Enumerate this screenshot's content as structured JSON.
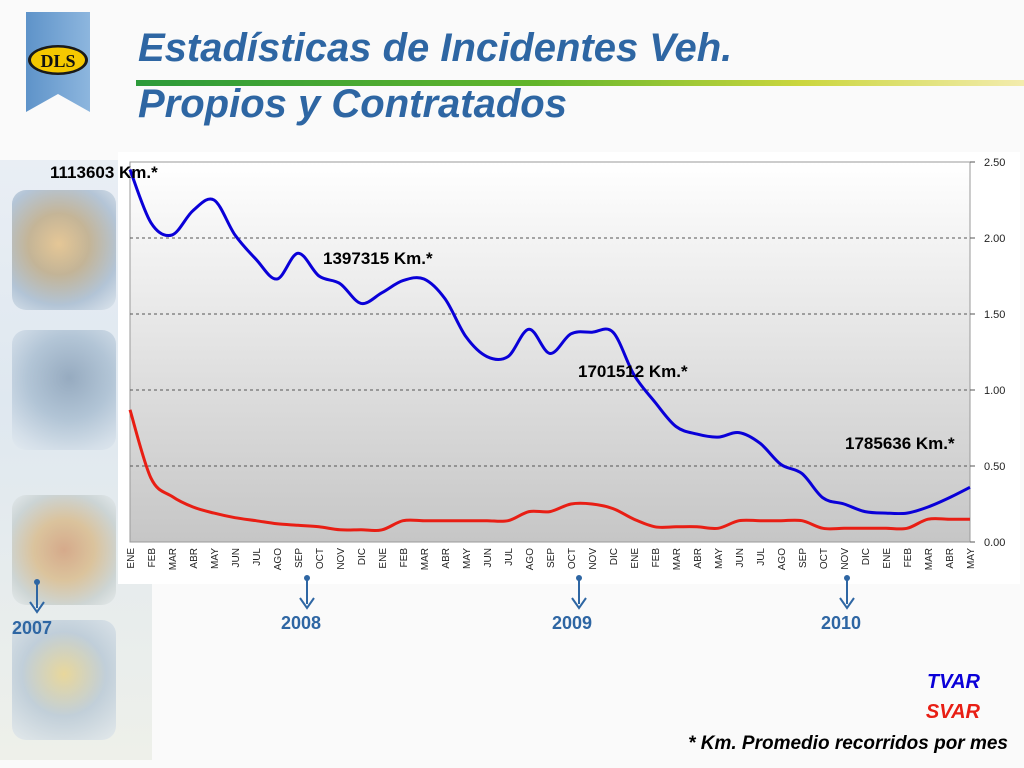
{
  "logo": {
    "text": "DLS"
  },
  "title": {
    "line1": "Estadísticas de Incidentes Veh.",
    "line2": "Propios y Contratados"
  },
  "colors": {
    "title": "#2e66a3",
    "tvar": "#0a00d8",
    "svar": "#e81e14"
  },
  "chart_data": {
    "type": "line",
    "x": [
      "ENE",
      "FEB",
      "MAR",
      "ABR",
      "MAY",
      "JUN",
      "JUL",
      "AGO",
      "SEP",
      "OCT",
      "NOV",
      "DIC",
      "ENE",
      "FEB",
      "MAR",
      "ABR",
      "MAY",
      "JUN",
      "JUL",
      "AGO",
      "SEP",
      "OCT",
      "NOV",
      "DIC",
      "ENE",
      "FEB",
      "MAR",
      "ABR",
      "MAY",
      "JUN",
      "JUL",
      "AGO",
      "SEP",
      "OCT",
      "NOV",
      "DIC",
      "ENE",
      "FEB",
      "MAR",
      "ABR",
      "MAY"
    ],
    "series": [
      {
        "name": "TVAR",
        "color": "#0a00d8",
        "values": [
          2.45,
          2.1,
          2.02,
          2.18,
          2.25,
          2.02,
          1.86,
          1.73,
          1.9,
          1.75,
          1.7,
          1.57,
          1.64,
          1.72,
          1.73,
          1.6,
          1.35,
          1.22,
          1.22,
          1.4,
          1.24,
          1.37,
          1.38,
          1.38,
          1.1,
          0.92,
          0.76,
          0.71,
          0.69,
          0.72,
          0.65,
          0.51,
          0.45,
          0.29,
          0.25,
          0.2,
          0.19,
          0.19,
          0.23,
          0.29,
          0.36
        ]
      },
      {
        "name": "SVAR",
        "color": "#e81e14",
        "values": [
          0.87,
          0.42,
          0.3,
          0.23,
          0.19,
          0.16,
          0.14,
          0.12,
          0.11,
          0.1,
          0.08,
          0.08,
          0.08,
          0.14,
          0.14,
          0.14,
          0.14,
          0.14,
          0.14,
          0.2,
          0.2,
          0.25,
          0.25,
          0.22,
          0.15,
          0.1,
          0.1,
          0.1,
          0.09,
          0.14,
          0.14,
          0.14,
          0.14,
          0.09,
          0.09,
          0.09,
          0.09,
          0.09,
          0.15,
          0.15,
          0.15
        ]
      }
    ],
    "y_ticks": [
      "2.50",
      "2.00",
      "1.50",
      "1.00",
      "0.50",
      "0.00"
    ],
    "ylim": [
      0,
      2.5
    ],
    "grid": true,
    "year_markers": [
      {
        "label": "2007",
        "x_index": 0
      },
      {
        "label": "2008",
        "x_index": 8
      },
      {
        "label": "2009",
        "x_index": 21
      },
      {
        "label": "2010",
        "x_index": 34
      }
    ],
    "annotations": [
      {
        "text": "1113603 Km.*"
      },
      {
        "text": "1397315 Km.*"
      },
      {
        "text": "1701512 Km.*"
      },
      {
        "text": "1785636 Km.*"
      }
    ]
  },
  "legend": {
    "tvar": "TVAR",
    "svar": "SVAR"
  },
  "footnote": "* Km. Promedio recorridos por mes"
}
